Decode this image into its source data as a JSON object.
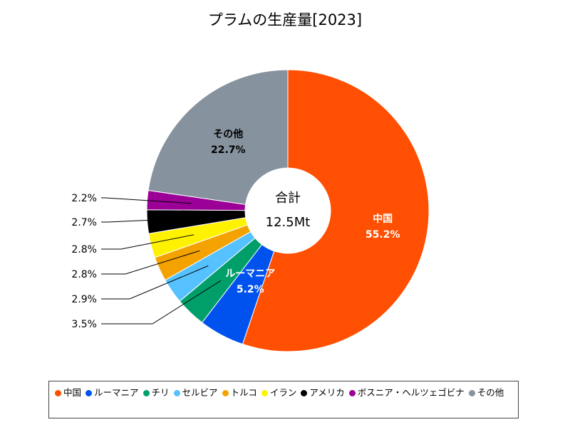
{
  "chart_data": {
    "type": "pie",
    "title": "プラムの生産量[2023]",
    "center_label": "合計",
    "center_value": "12.5Mt",
    "slices": [
      {
        "name": "中国",
        "value": 55.2,
        "label": "55.2%",
        "color": "#FF4F02"
      },
      {
        "name": "ルーマニア",
        "value": 5.2,
        "label": "5.2%",
        "color": "#0052EE"
      },
      {
        "name": "チリ",
        "value": 3.5,
        "label": "3.5%",
        "color": "#009F6A"
      },
      {
        "name": "セルビア",
        "value": 2.9,
        "label": "2.9%",
        "color": "#56C1FF"
      },
      {
        "name": "トルコ",
        "value": 2.8,
        "label": "2.8%",
        "color": "#F3A200"
      },
      {
        "name": "イラン",
        "value": 2.8,
        "label": "2.8%",
        "color": "#FFF200"
      },
      {
        "name": "アメリカ",
        "value": 2.7,
        "label": "2.7%",
        "color": "#000000"
      },
      {
        "name": "ボスニア・ヘルツェゴビナ",
        "value": 2.2,
        "label": "2.2%",
        "color": "#9B0097"
      },
      {
        "name": "その他",
        "value": 22.7,
        "label": "22.7%",
        "color": "#86929E"
      }
    ],
    "inner_labels": [
      "中国",
      "ルーマニア",
      "その他"
    ],
    "legend_position": "bottom"
  }
}
